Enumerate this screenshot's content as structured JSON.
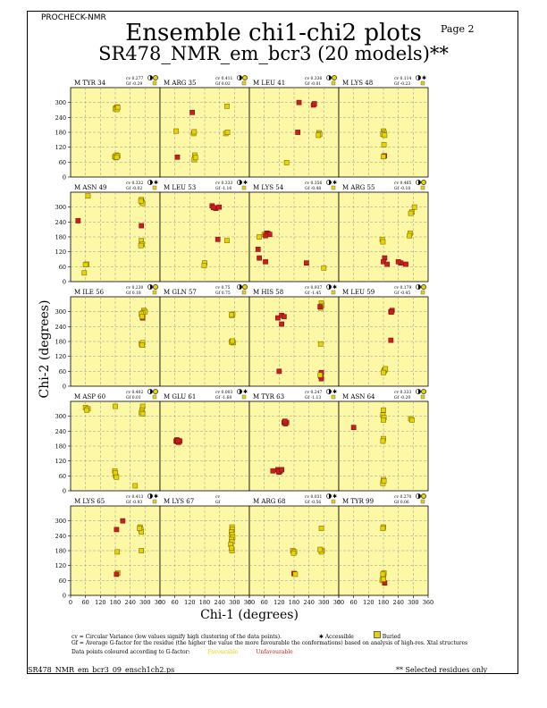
{
  "header": {
    "program": "PROCHECK-NMR",
    "page": "Page  2"
  },
  "title": {
    "line1": "Ensemble chi1-chi2 plots",
    "line2": "SR478_NMR_em_bcr3 (20 models)**"
  },
  "axes": {
    "xlabel": "Chi-1 (degrees)",
    "ylabel": "Chi-2 (degrees)",
    "xticks": [
      "0",
      "60",
      "120",
      "180",
      "240",
      "300",
      "360"
    ],
    "yticks": [
      "0",
      "60",
      "120",
      "180",
      "240",
      "300"
    ]
  },
  "colors": {
    "panel_bg": "#fdf8a6",
    "favourable": "#e8d200",
    "unfavourable": "#c81e1e"
  },
  "chart_data": {
    "type": "scatter",
    "xlim": [
      0,
      360
    ],
    "ylim": [
      0,
      360
    ],
    "panels": [
      {
        "label": "M TYR 34",
        "cv": "cv 0.277",
        "gf": "Gf -0.29",
        "access": "buried",
        "points": [
          [
            183,
            278,
            0
          ],
          [
            188,
            282,
            0
          ],
          [
            180,
            275,
            0
          ],
          [
            186,
            272,
            0
          ],
          [
            190,
            280,
            0
          ],
          [
            178,
            82,
            0
          ],
          [
            185,
            88,
            0
          ],
          [
            182,
            78,
            0
          ],
          [
            190,
            85,
            0
          ],
          [
            186,
            80,
            0
          ]
        ]
      },
      {
        "label": "M ARG 35",
        "cv": "cv 0.411",
        "gf": "Gf 0.02",
        "access": "buried",
        "points": [
          [
            65,
            185,
            0
          ],
          [
            70,
            80,
            1
          ],
          [
            130,
            260,
            1
          ],
          [
            135,
            175,
            0
          ],
          [
            138,
            182,
            0
          ],
          [
            140,
            88,
            0
          ],
          [
            138,
            70,
            0
          ],
          [
            143,
            78,
            0
          ],
          [
            265,
            175,
            0
          ],
          [
            272,
            180,
            0
          ],
          [
            270,
            285,
            0
          ]
        ]
      },
      {
        "label": "M LEU 41",
        "cv": "cv 0.336",
        "gf": "Gf -0.01",
        "access": "buried",
        "points": [
          [
            200,
            300,
            1
          ],
          [
            258,
            290,
            1
          ],
          [
            262,
            295,
            1
          ],
          [
            195,
            180,
            1
          ],
          [
            280,
            178,
            0
          ],
          [
            283,
            172,
            0
          ],
          [
            278,
            168,
            0
          ],
          [
            150,
            58,
            0
          ]
        ]
      },
      {
        "label": "M LYS 48",
        "cv": "cv 0.114",
        "gf": "Gf -0.23",
        "access": "accessible",
        "points": [
          [
            180,
            185,
            0
          ],
          [
            183,
            178,
            0
          ],
          [
            178,
            172,
            0
          ],
          [
            185,
            168,
            0
          ],
          [
            182,
            130,
            0
          ],
          [
            184,
            85,
            1
          ],
          [
            180,
            82,
            0
          ]
        ]
      },
      {
        "label": "M ASN 49",
        "cv": "cv 0.332",
        "gf": "Gf -0.02",
        "access": "accessible",
        "points": [
          [
            70,
            345,
            0
          ],
          [
            30,
            245,
            1
          ],
          [
            65,
            70,
            0
          ],
          [
            60,
            68,
            0
          ],
          [
            55,
            35,
            0
          ],
          [
            285,
            330,
            0
          ],
          [
            288,
            320,
            0
          ],
          [
            290,
            315,
            0
          ],
          [
            283,
            325,
            0
          ],
          [
            285,
            225,
            1
          ],
          [
            285,
            165,
            0
          ],
          [
            288,
            150,
            0
          ],
          [
            283,
            145,
            0
          ]
        ]
      },
      {
        "label": "M LEU 53",
        "cv": "cv 0.333",
        "gf": "Gf -1.16",
        "access": "accessible",
        "points": [
          [
            210,
            305,
            1
          ],
          [
            225,
            295,
            1
          ],
          [
            238,
            300,
            1
          ],
          [
            215,
            298,
            1
          ],
          [
            233,
            170,
            1
          ],
          [
            270,
            165,
            0
          ],
          [
            180,
            75,
            0
          ],
          [
            178,
            65,
            0
          ]
        ]
      },
      {
        "label": "M LYS 54",
        "cv": "cv 0.356",
        "gf": "Gf -0.48",
        "access": "accessible",
        "points": [
          [
            60,
            190,
            0
          ],
          [
            70,
            195,
            1
          ],
          [
            75,
            193,
            1
          ],
          [
            82,
            190,
            1
          ],
          [
            65,
            185,
            1
          ],
          [
            40,
            180,
            0
          ],
          [
            35,
            130,
            1
          ],
          [
            40,
            95,
            1
          ],
          [
            65,
            80,
            1
          ],
          [
            230,
            75,
            1
          ],
          [
            300,
            55,
            0
          ]
        ]
      },
      {
        "label": "M ARG 55",
        "cv": "cv 0.465",
        "gf": "Gf -0.10",
        "access": "buried",
        "points": [
          [
            295,
            280,
            0
          ],
          [
            290,
            275,
            0
          ],
          [
            305,
            300,
            0
          ],
          [
            288,
            195,
            0
          ],
          [
            285,
            185,
            0
          ],
          [
            175,
            170,
            0
          ],
          [
            178,
            160,
            0
          ],
          [
            185,
            95,
            1
          ],
          [
            180,
            80,
            1
          ],
          [
            195,
            70,
            1
          ],
          [
            250,
            75,
            1
          ],
          [
            270,
            70,
            1
          ],
          [
            240,
            80,
            1
          ]
        ]
      },
      {
        "label": "M ILE 56",
        "cv": "cv 0.230",
        "gf": "Gf 0.18",
        "access": "buried",
        "points": [
          [
            295,
            305,
            0
          ],
          [
            300,
            300,
            0
          ],
          [
            290,
            295,
            0
          ],
          [
            285,
            290,
            0
          ],
          [
            290,
            275,
            1
          ],
          [
            288,
            280,
            0
          ],
          [
            285,
            170,
            0
          ],
          [
            290,
            175,
            0
          ],
          [
            288,
            165,
            0
          ]
        ]
      },
      {
        "label": "M GLN 57",
        "cv": "cv 0.75",
        "gf": "Gf 0.75",
        "access": "buried",
        "points": [
          [
            290,
            285,
            0
          ],
          [
            293,
            290,
            0
          ],
          [
            288,
            287,
            0
          ],
          [
            290,
            180,
            0
          ],
          [
            295,
            175,
            0
          ],
          [
            288,
            178,
            0
          ],
          [
            292,
            182,
            0
          ]
        ]
      },
      {
        "label": "M HIS 58",
        "cv": "cv 0.937",
        "gf": "Gf -1.45",
        "access": "accessible",
        "points": [
          [
            115,
            275,
            1
          ],
          [
            130,
            285,
            1
          ],
          [
            140,
            280,
            1
          ],
          [
            130,
            250,
            1
          ],
          [
            290,
            335,
            0
          ],
          [
            292,
            325,
            0
          ],
          [
            288,
            315,
            0
          ],
          [
            285,
            320,
            1
          ],
          [
            287,
            170,
            0
          ],
          [
            290,
            55,
            1
          ],
          [
            288,
            40,
            1
          ],
          [
            290,
            30,
            1
          ],
          [
            285,
            45,
            0
          ],
          [
            120,
            60,
            1
          ]
        ]
      },
      {
        "label": "M LEU 59",
        "cv": "cv 0.179",
        "gf": "Gf -0.45",
        "access": "buried",
        "points": [
          [
            210,
            300,
            1
          ],
          [
            215,
            305,
            1
          ],
          [
            212,
            298,
            1
          ],
          [
            210,
            185,
            1
          ],
          [
            185,
            65,
            0
          ],
          [
            182,
            60,
            0
          ],
          [
            188,
            70,
            0
          ],
          [
            180,
            55,
            0
          ]
        ]
      },
      {
        "label": "M ASP 60",
        "cv": "cv 0.402",
        "gf": "Gf 0.01",
        "access": "buried",
        "points": [
          [
            60,
            335,
            0
          ],
          [
            70,
            330,
            0
          ],
          [
            65,
            325,
            0
          ],
          [
            180,
            340,
            0
          ],
          [
            290,
            340,
            0
          ],
          [
            288,
            325,
            0
          ],
          [
            285,
            315,
            0
          ],
          [
            290,
            310,
            0
          ],
          [
            178,
            80,
            0
          ],
          [
            182,
            60,
            0
          ],
          [
            180,
            72,
            0
          ],
          [
            185,
            55,
            0
          ],
          [
            260,
            20,
            0
          ]
        ]
      },
      {
        "label": "M GLU 61",
        "cv": "cv 0.003",
        "gf": "Gf -1.68",
        "access": "accessible",
        "points": [
          [
            65,
            200,
            1
          ],
          [
            70,
            198,
            1
          ],
          [
            75,
            195,
            1
          ],
          [
            80,
            200,
            1
          ],
          [
            68,
            205,
            1
          ],
          [
            73,
            202,
            1
          ]
        ]
      },
      {
        "label": "M TYR 63",
        "cv": "cv 0.247",
        "gf": "Gf -1.13",
        "access": "accessible",
        "points": [
          [
            140,
            275,
            1
          ],
          [
            145,
            270,
            1
          ],
          [
            150,
            275,
            1
          ],
          [
            143,
            280,
            1
          ],
          [
            95,
            80,
            1
          ],
          [
            115,
            85,
            1
          ],
          [
            120,
            75,
            1
          ],
          [
            125,
            80,
            1
          ],
          [
            118,
            78,
            1
          ],
          [
            130,
            85,
            1
          ]
        ]
      },
      {
        "label": "M ASN 64",
        "cv": "cv 0.333",
        "gf": "Gf -0.20",
        "access": "buried",
        "points": [
          [
            60,
            255,
            1
          ],
          [
            180,
            325,
            0
          ],
          [
            178,
            305,
            0
          ],
          [
            182,
            295,
            0
          ],
          [
            180,
            285,
            0
          ],
          [
            180,
            210,
            0
          ],
          [
            178,
            200,
            0
          ],
          [
            290,
            290,
            0
          ],
          [
            295,
            285,
            0
          ],
          [
            180,
            45,
            0
          ],
          [
            178,
            30,
            0
          ],
          [
            182,
            40,
            0
          ]
        ]
      },
      {
        "label": "M LYS 65",
        "cv": "cv 0.413",
        "gf": "Gf -0.93",
        "access": "accessible",
        "points": [
          [
            210,
            300,
            1
          ],
          [
            185,
            265,
            1
          ],
          [
            280,
            275,
            0
          ],
          [
            283,
            265,
            0
          ],
          [
            285,
            255,
            0
          ],
          [
            278,
            270,
            0
          ],
          [
            190,
            90,
            0
          ],
          [
            185,
            85,
            1
          ],
          [
            188,
            175,
            0
          ],
          [
            285,
            180,
            0
          ]
        ]
      },
      {
        "label": "M LYS 67",
        "cv": "cv",
        "gf": "Gf",
        "access": "",
        "points": [
          [
            290,
            275,
            0
          ],
          [
            292,
            265,
            0
          ],
          [
            288,
            255,
            0
          ],
          [
            290,
            245,
            0
          ],
          [
            293,
            235,
            0
          ],
          [
            288,
            225,
            0
          ],
          [
            290,
            215,
            0
          ],
          [
            285,
            205,
            0
          ],
          [
            290,
            180,
            0
          ],
          [
            288,
            190,
            0
          ]
        ]
      },
      {
        "label": "M ARG 68",
        "cv": "cv 0.031",
        "gf": "Gf -0.56",
        "access": "accessible",
        "points": [
          [
            175,
            180,
            0
          ],
          [
            182,
            175,
            0
          ],
          [
            178,
            170,
            0
          ],
          [
            290,
            270,
            0
          ],
          [
            293,
            180,
            0
          ],
          [
            290,
            175,
            0
          ],
          [
            285,
            185,
            0
          ],
          [
            180,
            88,
            1
          ],
          [
            185,
            85,
            0
          ]
        ]
      },
      {
        "label": "M TYR 99",
        "cv": "cv 0.270",
        "gf": "Gf 0.06",
        "access": "buried",
        "points": [
          [
            180,
            275,
            0
          ],
          [
            178,
            270,
            0
          ],
          [
            182,
            90,
            0
          ],
          [
            178,
            80,
            0
          ],
          [
            180,
            70,
            0
          ],
          [
            175,
            60,
            0
          ],
          [
            185,
            50,
            1
          ],
          [
            180,
            65,
            0
          ],
          [
            178,
            85,
            0
          ]
        ]
      }
    ],
    "extra_label": "cv 0.179",
    "extra_gf": "Gf 0.12"
  },
  "legend": {
    "line1": "cv = Circular Variance (low values signify high clustering of the data points).",
    "accessible": "Accessible",
    "buried": "Buried",
    "line2": "Gf = Average G-factor for the residue (the higher the value the more favourable the conformations) based on analysis of high-res. Xtal structures",
    "line3": "Data points coloured according to G-factor:",
    "favourable": "Favourable",
    "unfavourable": "Unfavourable"
  },
  "footer": {
    "filename": "SR478_NMR_em_bcr3_09_ensch1ch2.ps",
    "note": "** Selected residues only"
  }
}
